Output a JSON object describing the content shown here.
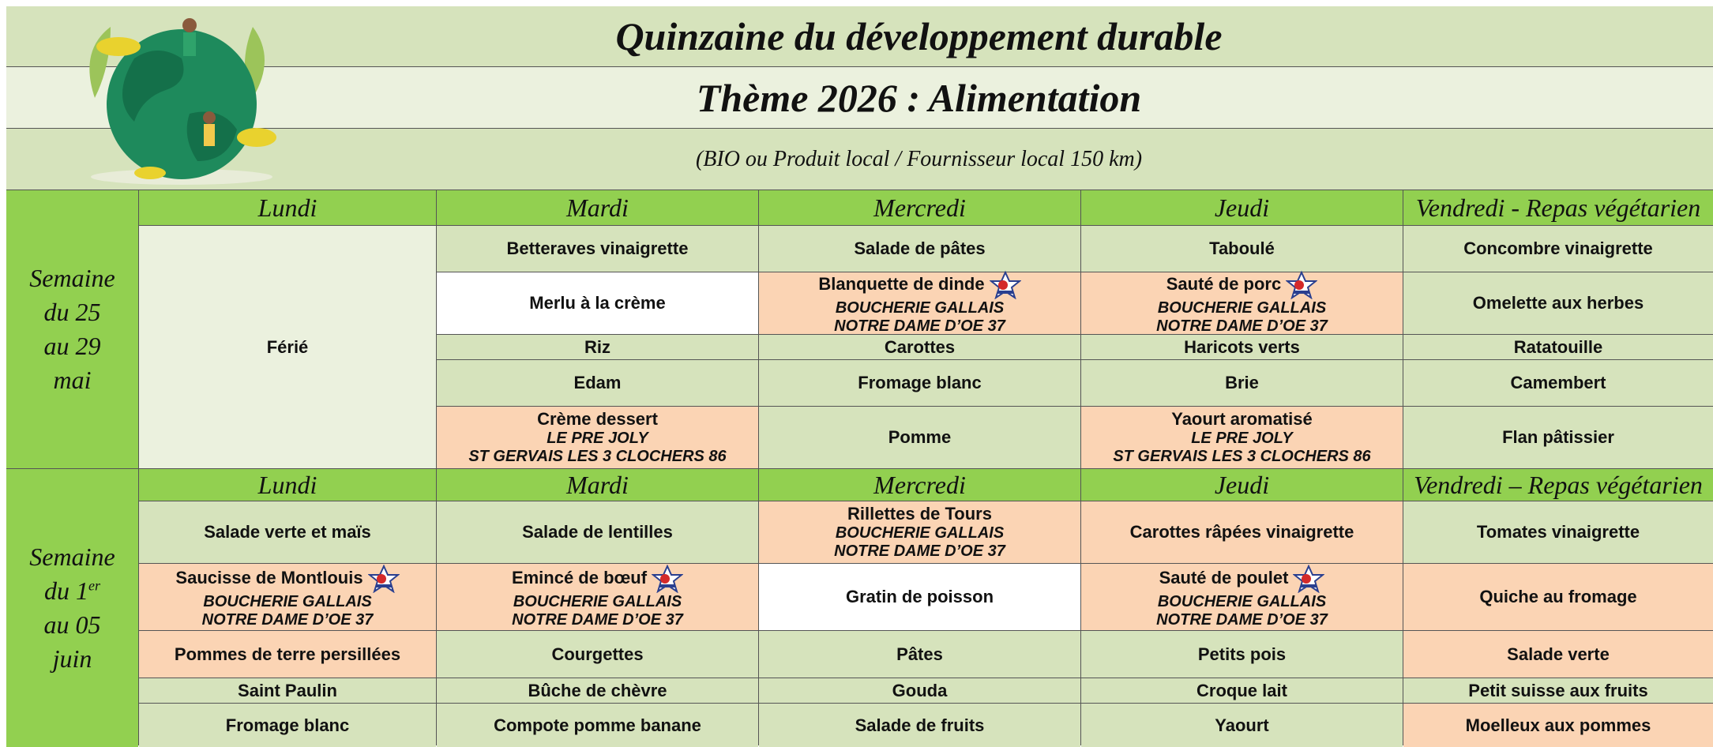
{
  "header": {
    "title": "Quinzaine du développement durable",
    "theme": "Thème 2026 : Alimentation",
    "subtitle": "(BIO ou Produit local / Fournisseur local 150 km)"
  },
  "weeks": [
    {
      "label": [
        "Semaine",
        "du 25",
        "au 29",
        "mai"
      ],
      "days": [
        "Lundi",
        "Mardi",
        "Mercredi",
        "Jeudi",
        "Vendredi - Repas végétarien"
      ],
      "columns": [
        [
          {
            "dish": "Férié"
          }
        ],
        [
          {
            "dish": "Betteraves vinaigrette"
          },
          {
            "dish": "Merlu à la crème"
          },
          {
            "dish": "Riz"
          },
          {
            "dish": "Edam"
          },
          {
            "dish": "Crème dessert",
            "supplier": [
              "LE PRE JOLY",
              "ST GERVAIS LES 3 CLOCHERS 86"
            ]
          }
        ],
        [
          {
            "dish": "Salade de pâtes"
          },
          {
            "dish": "Blanquette de dinde",
            "supplier": [
              "BOUCHERIE GALLAIS",
              "NOTRE DAME D’OE 37"
            ]
          },
          {
            "dish": "Carottes"
          },
          {
            "dish": "Fromage blanc"
          },
          {
            "dish": "Pomme"
          }
        ],
        [
          {
            "dish": "Taboulé"
          },
          {
            "dish": "Sauté de porc",
            "supplier": [
              "BOUCHERIE GALLAIS",
              "NOTRE DAME D’OE 37"
            ]
          },
          {
            "dish": "Haricots verts"
          },
          {
            "dish": "Brie"
          },
          {
            "dish": "Yaourt aromatisé",
            "supplier": [
              "LE PRE JOLY",
              "ST GERVAIS LES 3 CLOCHERS 86"
            ]
          }
        ],
        [
          {
            "dish": "Concombre vinaigrette"
          },
          {
            "dish": "Omelette aux herbes"
          },
          {
            "dish": "Ratatouille"
          },
          {
            "dish": "Camembert"
          },
          {
            "dish": "Flan pâtissier"
          }
        ]
      ]
    },
    {
      "label": [
        "Semaine",
        "du 1",
        "au 05",
        "juin"
      ],
      "label_superscript": "er",
      "days": [
        "Lundi",
        "Mardi",
        "Mercredi",
        "Jeudi",
        "Vendredi – Repas végétarien"
      ],
      "columns": [
        [
          {
            "dish": "Salade verte et maïs"
          },
          {
            "dish": "Saucisse de Montlouis",
            "supplier": [
              "BOUCHERIE GALLAIS",
              "NOTRE DAME D’OE 37"
            ]
          },
          {
            "dish": "Pommes de terre persillées"
          },
          {
            "dish": "Saint Paulin"
          },
          {
            "dish": "Fromage blanc"
          }
        ],
        [
          {
            "dish": "Salade de lentilles"
          },
          {
            "dish": "Emincé de bœuf",
            "supplier": [
              "BOUCHERIE GALLAIS",
              "NOTRE DAME D’OE 37"
            ]
          },
          {
            "dish": "Courgettes"
          },
          {
            "dish": "Bûche de chèvre"
          },
          {
            "dish": "Compote pomme banane"
          }
        ],
        [
          {
            "dish": "Rillettes de Tours",
            "supplier": [
              "BOUCHERIE GALLAIS",
              "NOTRE DAME D’OE 37"
            ]
          },
          {
            "dish": "Gratin de poisson"
          },
          {
            "dish": "Pâtes"
          },
          {
            "dish": "Gouda"
          },
          {
            "dish": "Salade de fruits"
          }
        ],
        [
          {
            "dish": "Carottes râpées vinaigrette"
          },
          {
            "dish": "Sauté de poulet",
            "supplier": [
              "BOUCHERIE GALLAIS",
              "NOTRE DAME D’OE 37"
            ]
          },
          {
            "dish": "Petits pois"
          },
          {
            "dish": "Croque lait"
          },
          {
            "dish": "Yaourt"
          }
        ],
        [
          {
            "dish": "Tomates vinaigrette"
          },
          {
            "dish": "Quiche au fromage"
          },
          {
            "dish": "Salade verte"
          },
          {
            "dish": "Petit suisse aux fruits"
          },
          {
            "dish": "Moelleux aux pommes"
          }
        ]
      ]
    }
  ]
}
